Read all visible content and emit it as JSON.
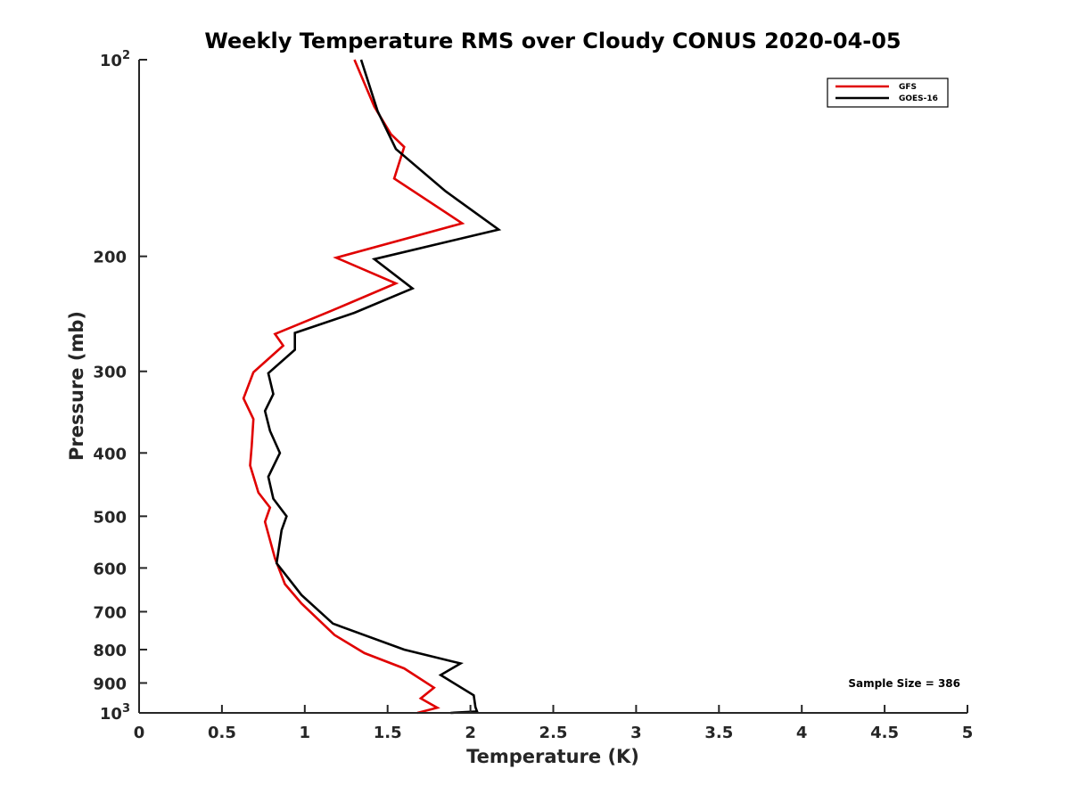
{
  "chart_data": {
    "type": "line",
    "title": "Weekly Temperature RMS over Cloudy CONUS 2020-04-05",
    "xlabel": "Temperature (K)",
    "ylabel": "Pressure (mb)",
    "xlim": [
      0,
      5
    ],
    "ylim": [
      100,
      1000
    ],
    "y_scale": "log",
    "y_reversed": true,
    "grid": false,
    "legend_position": "top-right",
    "x_ticks": [
      {
        "value": 0,
        "label": "0"
      },
      {
        "value": 0.5,
        "label": "0.5"
      },
      {
        "value": 1,
        "label": "1"
      },
      {
        "value": 1.5,
        "label": "1.5"
      },
      {
        "value": 2,
        "label": "2"
      },
      {
        "value": 2.5,
        "label": "2.5"
      },
      {
        "value": 3,
        "label": "3"
      },
      {
        "value": 3.5,
        "label": "3.5"
      },
      {
        "value": 4,
        "label": "4"
      },
      {
        "value": 4.5,
        "label": "4.5"
      },
      {
        "value": 5,
        "label": "5"
      }
    ],
    "y_ticks": [
      {
        "value": 100,
        "base": "10",
        "exp": "2"
      },
      {
        "value": 200,
        "label": "200"
      },
      {
        "value": 300,
        "label": "300"
      },
      {
        "value": 400,
        "label": "400"
      },
      {
        "value": 500,
        "label": "500"
      },
      {
        "value": 600,
        "label": "600"
      },
      {
        "value": 700,
        "label": "700"
      },
      {
        "value": 800,
        "label": "800"
      },
      {
        "value": 900,
        "label": "900"
      },
      {
        "value": 1000,
        "base": "10",
        "exp": "3"
      }
    ],
    "annotation": "Sample Size = 386",
    "series": [
      {
        "name": "GFS",
        "color": "#e00000",
        "points": [
          [
            1.3,
            100
          ],
          [
            1.42,
            118
          ],
          [
            1.52,
            130
          ],
          [
            1.6,
            136
          ],
          [
            1.54,
            152
          ],
          [
            1.95,
            178
          ],
          [
            1.19,
            201
          ],
          [
            1.55,
            220
          ],
          [
            1.15,
            243
          ],
          [
            0.82,
            263
          ],
          [
            0.87,
            274
          ],
          [
            0.69,
            301
          ],
          [
            0.63,
            330
          ],
          [
            0.69,
            355
          ],
          [
            0.68,
            390
          ],
          [
            0.67,
            418
          ],
          [
            0.72,
            460
          ],
          [
            0.79,
            485
          ],
          [
            0.76,
            510
          ],
          [
            0.82,
            580
          ],
          [
            0.88,
            635
          ],
          [
            0.98,
            680
          ],
          [
            1.18,
            760
          ],
          [
            1.36,
            810
          ],
          [
            1.6,
            855
          ],
          [
            1.78,
            915
          ],
          [
            1.7,
            950
          ],
          [
            1.8,
            982
          ],
          [
            1.68,
            1000
          ]
        ]
      },
      {
        "name": "GOES-16",
        "color": "#000000",
        "points": [
          [
            1.34,
            100
          ],
          [
            1.44,
            120
          ],
          [
            1.55,
            137
          ],
          [
            1.85,
            159
          ],
          [
            2.17,
            182
          ],
          [
            1.42,
            202
          ],
          [
            1.65,
            224
          ],
          [
            1.3,
            244
          ],
          [
            0.94,
            262
          ],
          [
            0.94,
            278
          ],
          [
            0.78,
            302
          ],
          [
            0.81,
            325
          ],
          [
            0.76,
            345
          ],
          [
            0.79,
            370
          ],
          [
            0.85,
            400
          ],
          [
            0.78,
            435
          ],
          [
            0.81,
            470
          ],
          [
            0.89,
            500
          ],
          [
            0.86,
            525
          ],
          [
            0.83,
            590
          ],
          [
            0.98,
            660
          ],
          [
            1.17,
            730
          ],
          [
            1.6,
            800
          ],
          [
            1.94,
            840
          ],
          [
            1.82,
            875
          ],
          [
            2.02,
            940
          ],
          [
            2.03,
            980
          ],
          [
            2.04,
            995
          ],
          [
            1.88,
            1000
          ]
        ]
      }
    ]
  }
}
